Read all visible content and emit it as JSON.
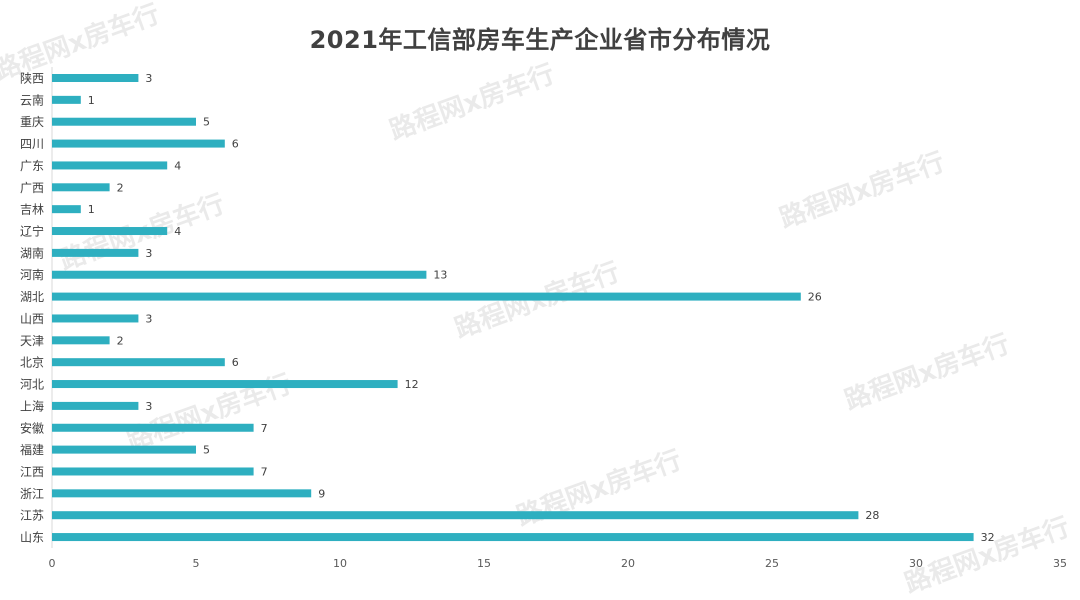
{
  "watermark": "路程网x房车行",
  "chart_data": {
    "type": "bar",
    "orientation": "horizontal",
    "title": "2021年工信部房车生产企业省市分布情况",
    "xlabel": "",
    "ylabel": "",
    "categories": [
      "陕西",
      "云南",
      "重庆",
      "四川",
      "广东",
      "广西",
      "吉林",
      "辽宁",
      "湖南",
      "河南",
      "湖北",
      "山西",
      "天津",
      "北京",
      "河北",
      "上海",
      "安徽",
      "福建",
      "江西",
      "浙江",
      "江苏",
      "山东"
    ],
    "values": [
      3,
      1,
      5,
      6,
      4,
      2,
      1,
      4,
      3,
      13,
      26,
      3,
      2,
      6,
      12,
      3,
      7,
      5,
      7,
      9,
      28,
      32
    ],
    "xlim": [
      0,
      35
    ],
    "xticks": [
      0,
      5,
      10,
      15,
      20,
      25,
      30,
      35
    ],
    "grid": false,
    "legend": "none",
    "bar_color": "#2eafc0",
    "data_labels": true
  }
}
